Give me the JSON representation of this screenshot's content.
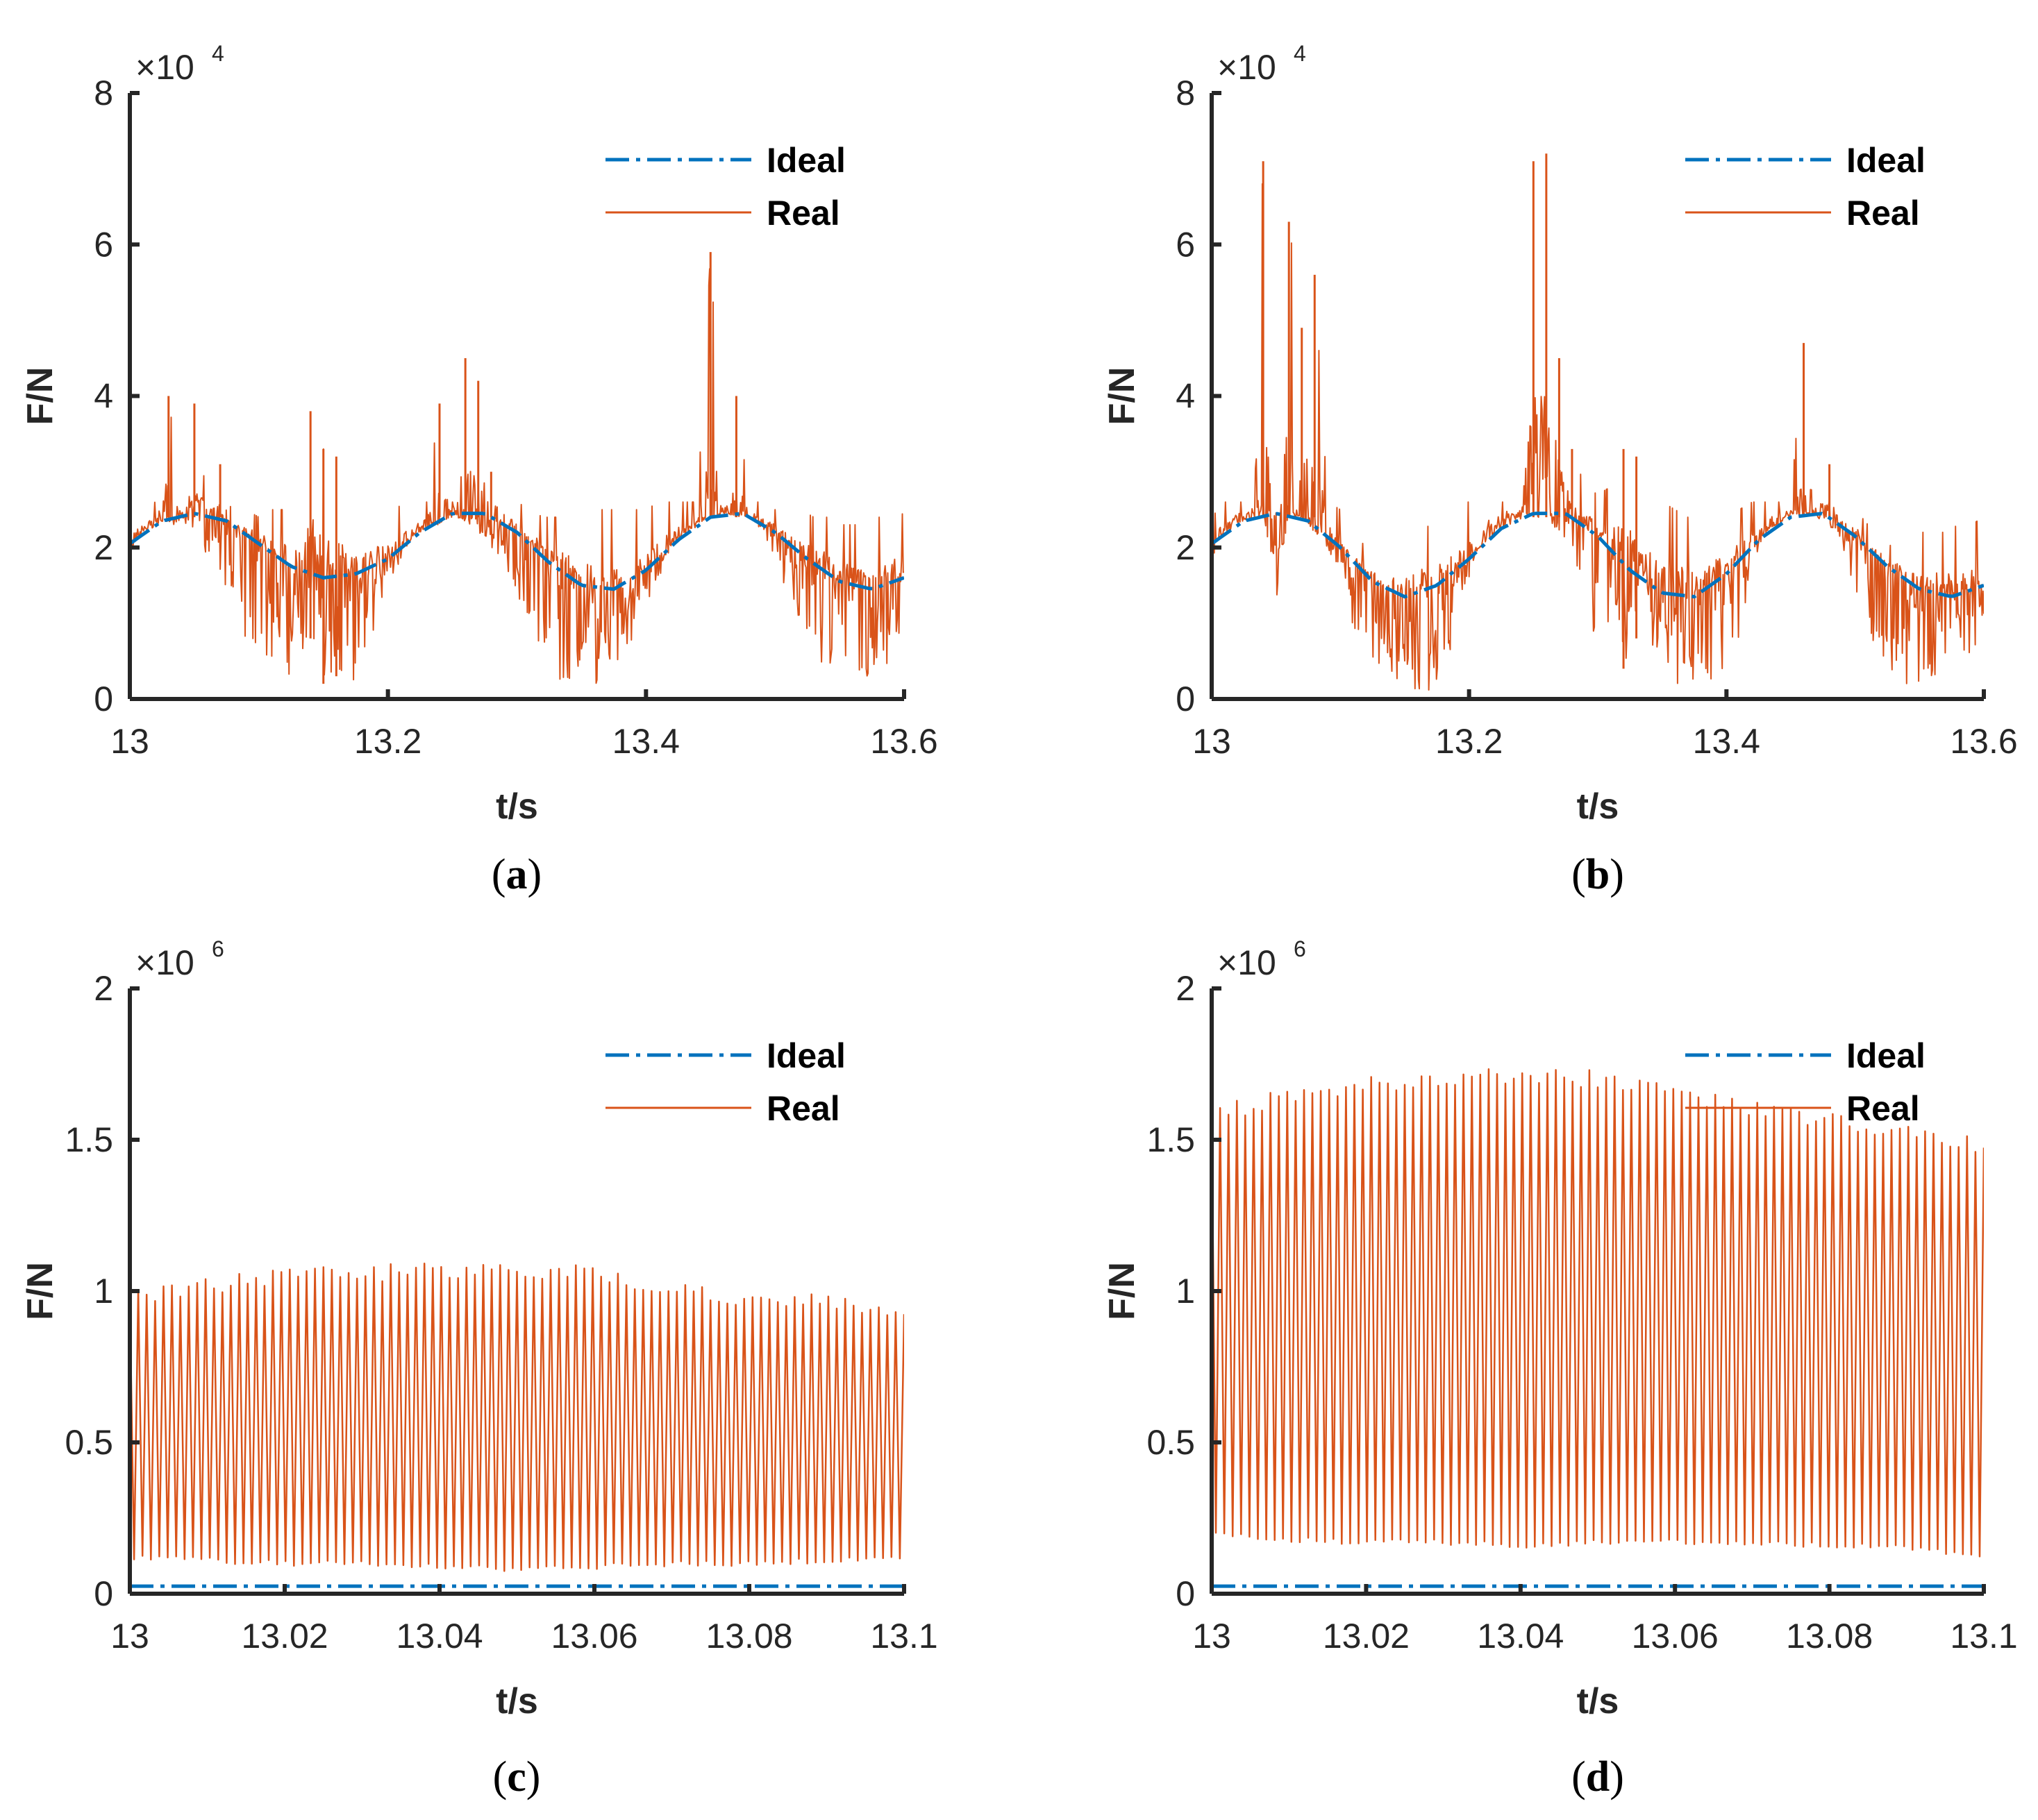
{
  "colors": {
    "ideal": "#0072BD",
    "real": "#D95319",
    "axis": "#262626"
  },
  "chart_data": [
    {
      "id": "a",
      "type": "line",
      "caption_letter": "a",
      "xlabel": "t/s",
      "ylabel": "F/N",
      "exponent": "4",
      "xlim": [
        13,
        13.6
      ],
      "ylim": [
        0,
        8
      ],
      "xticks": [
        13,
        13.2,
        13.4,
        13.6
      ],
      "xtick_labels": [
        "13",
        "13.2",
        "13.4",
        "13.6"
      ],
      "yticks": [
        0,
        2,
        4,
        6,
        8
      ],
      "ytick_labels": [
        "0",
        "2",
        "4",
        "6",
        "8"
      ],
      "legend": [
        "Ideal",
        "Real"
      ],
      "legend_position": "top-right",
      "series": [
        {
          "name": "Ideal",
          "style": "dash-dot",
          "x": [
            13.0,
            13.025,
            13.05,
            13.075,
            13.1,
            13.125,
            13.15,
            13.175,
            13.2,
            13.225,
            13.25,
            13.275,
            13.3,
            13.325,
            13.35,
            13.375,
            13.4,
            13.425,
            13.45,
            13.475,
            13.5,
            13.525,
            13.55,
            13.575,
            13.6
          ],
          "y": [
            2.05,
            2.35,
            2.45,
            2.35,
            2.05,
            1.75,
            1.6,
            1.65,
            1.85,
            2.2,
            2.45,
            2.45,
            2.2,
            1.8,
            1.5,
            1.45,
            1.7,
            2.1,
            2.4,
            2.45,
            2.2,
            1.85,
            1.55,
            1.45,
            1.6
          ]
        },
        {
          "name": "Real",
          "style": "solid",
          "x": [
            13.0,
            13.01,
            13.02,
            13.03,
            13.04,
            13.05,
            13.06,
            13.07,
            13.08,
            13.09,
            13.1,
            13.11,
            13.12,
            13.13,
            13.14,
            13.15,
            13.16,
            13.17,
            13.18,
            13.19,
            13.2,
            13.21,
            13.22,
            13.23,
            13.24,
            13.25,
            13.26,
            13.27,
            13.28,
            13.29,
            13.3,
            13.31,
            13.32,
            13.33,
            13.34,
            13.35,
            13.36,
            13.37,
            13.38,
            13.39,
            13.4,
            13.41,
            13.42,
            13.43,
            13.44,
            13.45,
            13.46,
            13.47,
            13.48,
            13.49,
            13.5,
            13.51,
            13.52,
            13.53,
            13.54,
            13.55,
            13.56,
            13.57,
            13.58,
            13.59,
            13.6
          ],
          "hi": [
            2.4,
            2.55,
            2.6,
            4.0,
            2.6,
            3.9,
            2.6,
            3.1,
            2.4,
            2.5,
            2.4,
            2.5,
            2.5,
            2.4,
            3.8,
            3.3,
            3.2,
            2.5,
            2.5,
            2.5,
            2.5,
            2.55,
            2.6,
            2.6,
            3.9,
            2.6,
            4.5,
            4.2,
            3.0,
            2.8,
            2.6,
            2.5,
            2.4,
            2.4,
            2.4,
            2.5,
            2.5,
            2.5,
            2.5,
            2.5,
            2.5,
            2.6,
            2.6,
            2.6,
            2.6,
            5.9,
            2.6,
            4.0,
            2.6,
            2.6,
            2.5,
            2.4,
            2.5,
            2.4,
            2.4,
            2.3,
            2.3,
            2.3,
            2.4,
            2.4,
            2.45
          ],
          "lo": [
            1.9,
            2.3,
            2.4,
            2.3,
            2.3,
            2.2,
            1.9,
            1.6,
            1.2,
            0.8,
            0.5,
            0.5,
            0.3,
            0.1,
            0.8,
            0.2,
            0.3,
            0.2,
            0.3,
            1.0,
            1.5,
            1.8,
            2.2,
            2.3,
            2.3,
            2.4,
            2.3,
            2.2,
            2.0,
            1.7,
            1.3,
            1.0,
            0.5,
            0.3,
            0.1,
            0.3,
            0.15,
            0.2,
            0.4,
            0.8,
            1.2,
            1.6,
            2.0,
            2.3,
            2.4,
            2.4,
            2.5,
            2.4,
            2.4,
            2.2,
            1.8,
            1.4,
            1.0,
            0.6,
            0.4,
            0.3,
            0.3,
            0.2,
            0.2,
            0.5,
            1.0
          ]
        }
      ]
    },
    {
      "id": "b",
      "type": "line",
      "caption_letter": "b",
      "xlabel": "t/s",
      "ylabel": "F/N",
      "exponent": "4",
      "xlim": [
        13,
        13.6
      ],
      "ylim": [
        0,
        8
      ],
      "xticks": [
        13,
        13.2,
        13.4,
        13.6
      ],
      "xtick_labels": [
        "13",
        "13.2",
        "13.4",
        "13.6"
      ],
      "yticks": [
        0,
        2,
        4,
        6,
        8
      ],
      "ytick_labels": [
        "0",
        "2",
        "4",
        "6",
        "8"
      ],
      "legend": [
        "Ideal",
        "Real"
      ],
      "legend_position": "top-right",
      "series": [
        {
          "name": "Ideal",
          "style": "dash-dot",
          "x": [
            13.0,
            13.025,
            13.05,
            13.075,
            13.1,
            13.125,
            13.15,
            13.175,
            13.2,
            13.225,
            13.25,
            13.275,
            13.3,
            13.325,
            13.35,
            13.375,
            13.4,
            13.425,
            13.45,
            13.475,
            13.5,
            13.525,
            13.55,
            13.575,
            13.6
          ],
          "y": [
            2.05,
            2.35,
            2.45,
            2.35,
            2.0,
            1.55,
            1.35,
            1.5,
            1.85,
            2.25,
            2.45,
            2.45,
            2.15,
            1.7,
            1.4,
            1.35,
            1.65,
            2.1,
            2.4,
            2.45,
            2.15,
            1.75,
            1.45,
            1.35,
            1.5
          ]
        },
        {
          "name": "Real",
          "style": "solid",
          "x": [
            13.0,
            13.01,
            13.02,
            13.03,
            13.04,
            13.05,
            13.06,
            13.07,
            13.08,
            13.09,
            13.1,
            13.11,
            13.12,
            13.13,
            13.14,
            13.15,
            13.16,
            13.17,
            13.18,
            13.19,
            13.2,
            13.21,
            13.22,
            13.23,
            13.24,
            13.25,
            13.26,
            13.27,
            13.28,
            13.29,
            13.3,
            13.31,
            13.32,
            13.33,
            13.34,
            13.35,
            13.36,
            13.37,
            13.38,
            13.39,
            13.4,
            13.41,
            13.42,
            13.43,
            13.44,
            13.45,
            13.46,
            13.47,
            13.48,
            13.49,
            13.5,
            13.51,
            13.52,
            13.53,
            13.54,
            13.55,
            13.56,
            13.57,
            13.58,
            13.59,
            13.6
          ],
          "hi": [
            2.4,
            2.6,
            2.6,
            2.6,
            7.1,
            2.6,
            6.3,
            4.9,
            5.6,
            2.6,
            2.5,
            2.2,
            2.0,
            1.9,
            2.0,
            2.0,
            2.2,
            2.3,
            2.5,
            2.6,
            2.6,
            2.6,
            2.6,
            2.6,
            2.6,
            7.1,
            7.2,
            4.5,
            3.3,
            2.8,
            2.7,
            2.8,
            3.3,
            3.2,
            2.8,
            2.6,
            2.5,
            2.4,
            2.4,
            2.5,
            2.5,
            2.5,
            2.6,
            2.6,
            2.6,
            2.6,
            4.7,
            2.7,
            3.1,
            2.7,
            2.5,
            2.3,
            2.1,
            2.0,
            2.1,
            2.2,
            2.2,
            2.2,
            2.3,
            2.3,
            2.4
          ],
          "lo": [
            1.8,
            2.3,
            2.5,
            2.5,
            2.5,
            1.2,
            2.5,
            2.4,
            2.2,
            2.0,
            1.6,
            0.9,
            0.6,
            0.4,
            0.3,
            0.2,
            0.1,
            0.1,
            0.3,
            0.8,
            1.6,
            2.2,
            2.5,
            2.5,
            2.5,
            2.4,
            2.3,
            2.2,
            2.0,
            1.2,
            0.5,
            0.3,
            0.4,
            0.8,
            0.7,
            0.4,
            0.2,
            0.1,
            0.3,
            0.2,
            0.1,
            0.7,
            1.6,
            2.3,
            2.5,
            2.5,
            2.5,
            2.4,
            2.3,
            2.0,
            1.3,
            0.8,
            0.6,
            0.3,
            0.2,
            0.2,
            0.2,
            0.3,
            0.4,
            0.5,
            1.0
          ]
        }
      ]
    },
    {
      "id": "c",
      "type": "line",
      "caption_letter": "c",
      "xlabel": "t/s",
      "ylabel": "F/N",
      "exponent": "6",
      "xlim": [
        13,
        13.1
      ],
      "ylim": [
        0,
        2
      ],
      "xticks": [
        13,
        13.02,
        13.04,
        13.06,
        13.08,
        13.1
      ],
      "xtick_labels": [
        "13",
        "13.02",
        "13.04",
        "13.06",
        "13.08",
        "13.1"
      ],
      "yticks": [
        0,
        0.5,
        1,
        1.5,
        2
      ],
      "ytick_labels": [
        "0",
        "0.5",
        "1",
        "1.5",
        "2"
      ],
      "legend": [
        "Ideal",
        "Real"
      ],
      "legend_position": "top-right",
      "series": [
        {
          "name": "Ideal",
          "style": "dash-dot",
          "x": [
            13.0,
            13.1
          ],
          "y": [
            0.025,
            0.025
          ]
        },
        {
          "name": "Real",
          "style": "solid",
          "x": [
            13.0,
            13.01,
            13.02,
            13.03,
            13.04,
            13.05,
            13.06,
            13.07,
            13.08,
            13.09,
            13.1
          ],
          "hi": [
            0.98,
            1.02,
            1.05,
            1.06,
            1.07,
            1.08,
            1.05,
            1.0,
            0.98,
            0.96,
            0.93
          ],
          "lo": [
            0.12,
            0.11,
            0.1,
            0.1,
            0.09,
            0.08,
            0.09,
            0.1,
            0.1,
            0.11,
            0.12
          ],
          "cycles": 92
        }
      ]
    },
    {
      "id": "d",
      "type": "line",
      "caption_letter": "d",
      "xlabel": "t/s",
      "ylabel": "F/N",
      "exponent": "6",
      "xlim": [
        13,
        13.1
      ],
      "ylim": [
        0,
        2
      ],
      "xticks": [
        13,
        13.02,
        13.04,
        13.06,
        13.08,
        13.1
      ],
      "xtick_labels": [
        "13",
        "13.02",
        "13.04",
        "13.06",
        "13.08",
        "13.1"
      ],
      "yticks": [
        0,
        0.5,
        1,
        1.5,
        2
      ],
      "ytick_labels": [
        "0",
        "0.5",
        "1",
        "1.5",
        "2"
      ],
      "legend": [
        "Ideal",
        "Real"
      ],
      "legend_position": "top-right",
      "series": [
        {
          "name": "Ideal",
          "style": "dash-dot",
          "x": [
            13.0,
            13.1
          ],
          "y": [
            0.025,
            0.025
          ]
        },
        {
          "name": "Real",
          "style": "solid",
          "x": [
            13.0,
            13.01,
            13.02,
            13.03,
            13.04,
            13.05,
            13.06,
            13.07,
            13.08,
            13.09,
            13.1
          ],
          "hi": [
            1.58,
            1.64,
            1.68,
            1.7,
            1.71,
            1.7,
            1.66,
            1.6,
            1.56,
            1.52,
            1.48
          ],
          "lo": [
            0.2,
            0.18,
            0.17,
            0.17,
            0.16,
            0.17,
            0.17,
            0.17,
            0.16,
            0.15,
            0.13
          ],
          "cycles": 92
        }
      ]
    }
  ]
}
